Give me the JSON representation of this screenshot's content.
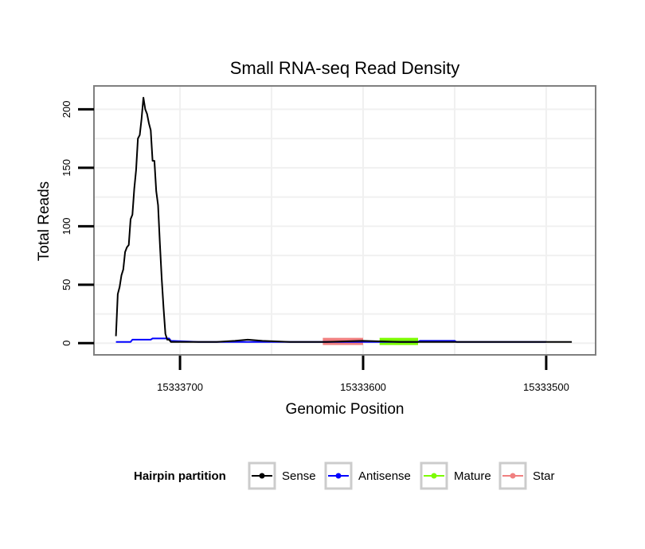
{
  "chart_data": {
    "type": "line",
    "title": "Small RNA-seq Read Density",
    "xlabel": "Genomic Position",
    "ylabel": "Total Reads",
    "x_reversed": true,
    "xlim": [
      15333747,
      15333473
    ],
    "ylim": [
      -10,
      220
    ],
    "x_ticks": [
      15333700,
      15333600,
      15333500
    ],
    "x_tick_labels": [
      "15333700",
      "15333600",
      "15333500"
    ],
    "y_ticks": [
      0,
      50,
      100,
      150,
      200
    ],
    "y_tick_labels": [
      "0",
      "50",
      "100",
      "150",
      "200"
    ],
    "grid": true,
    "legend": {
      "title": "Hairpin partition",
      "position": "bottom",
      "entries": [
        {
          "name": "Sense",
          "color": "#000000"
        },
        {
          "name": "Antisense",
          "color": "#0000ff"
        },
        {
          "name": "Mature",
          "color": "#7cfc00"
        },
        {
          "name": "Star",
          "color": "#f08080"
        }
      ]
    },
    "series": [
      {
        "name": "Sense",
        "color": "#000000",
        "x": [
          15333735,
          15333734,
          15333733,
          15333732,
          15333731,
          15333730,
          15333729,
          15333728,
          15333727,
          15333726,
          15333725,
          15333724,
          15333723,
          15333722,
          15333721,
          15333720,
          15333719,
          15333718,
          15333717,
          15333716,
          15333715,
          15333714,
          15333713,
          15333712,
          15333711,
          15333710,
          15333709,
          15333708,
          15333707,
          15333706,
          15333705,
          15333704,
          15333703,
          15333702,
          15333701,
          15333700,
          15333699,
          15333690,
          15333680,
          15333670,
          15333663,
          15333655,
          15333640,
          15333620,
          15333600,
          15333580,
          15333560,
          15333540,
          15333520,
          15333500,
          15333486
        ],
        "y": [
          6,
          42,
          48,
          58,
          63,
          78,
          82,
          84,
          106,
          110,
          132,
          148,
          175,
          178,
          192,
          210,
          200,
          196,
          188,
          182,
          156,
          156,
          130,
          118,
          85,
          55,
          30,
          8,
          3,
          3,
          1,
          1,
          1,
          1,
          1,
          1,
          1,
          1,
          1,
          2,
          3,
          2,
          1,
          1,
          2,
          1,
          1,
          1,
          1,
          1,
          1
        ]
      },
      {
        "name": "Antisense",
        "color": "#0000ff",
        "x": [
          15333735,
          15333727,
          15333726,
          15333716,
          15333715,
          15333706,
          15333705,
          15333690,
          15333660,
          15333640,
          15333620,
          15333600,
          15333597,
          15333570,
          15333569,
          15333550,
          15333549,
          15333520,
          15333500
        ],
        "y": [
          1,
          1,
          3,
          3,
          4,
          4,
          2,
          1,
          1,
          1,
          1,
          1,
          1,
          1,
          2,
          2,
          1,
          1,
          1
        ]
      },
      {
        "name": "Mature",
        "color": "#7cfc00",
        "x": [
          15333591,
          15333570
        ],
        "y": [
          1.5,
          1.5
        ]
      },
      {
        "name": "Star",
        "color": "#f08080",
        "x": [
          15333622,
          15333600
        ],
        "y": [
          1.5,
          1.5
        ]
      }
    ]
  }
}
